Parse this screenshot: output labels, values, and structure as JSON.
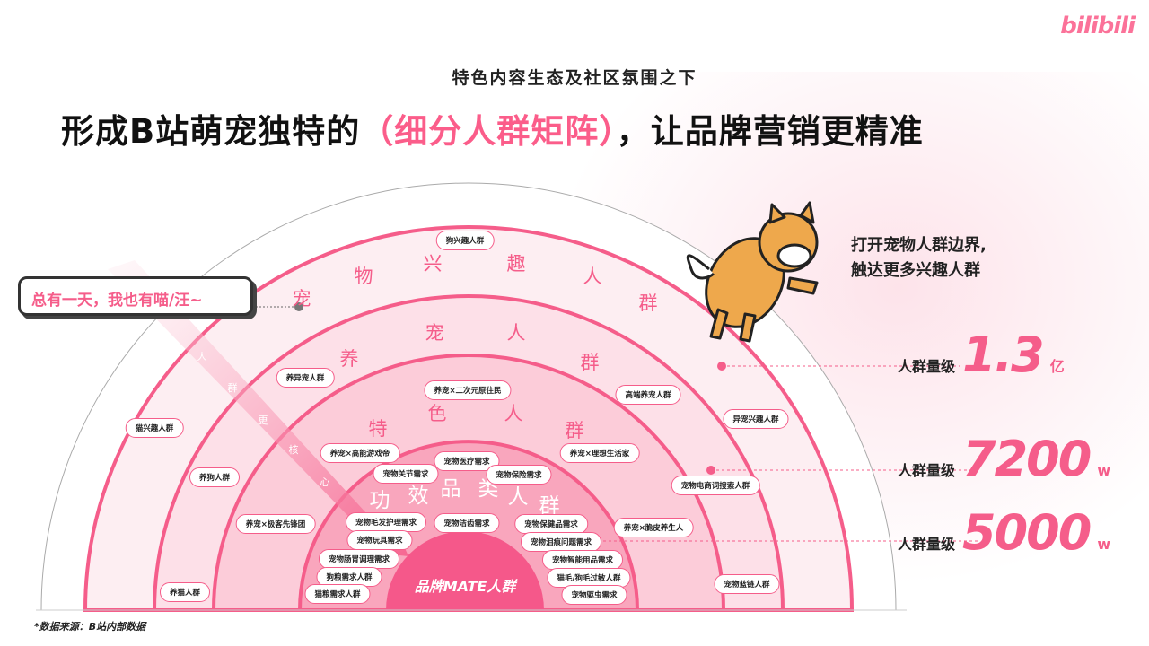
{
  "brand": {
    "logo": "bilibili"
  },
  "header": {
    "subtitle": "特色内容生态及社区氛围之下",
    "title_before": "形成B站萌宠独特的",
    "title_highlight": "（细分人群矩阵）",
    "title_after": "，让品牌营销更精准"
  },
  "colors": {
    "accent": "#f55d8a",
    "core": "#f5588a",
    "ring_light": "#fde9ee"
  },
  "rings": {
    "outer": [
      "宠",
      "物",
      "兴",
      "趣",
      "人",
      "群"
    ],
    "second": [
      "养",
      "宠",
      "人",
      "群"
    ],
    "third": [
      "特",
      "色",
      "人",
      "群"
    ],
    "fourth": [
      "功",
      "效",
      "品",
      "类",
      "人",
      "群"
    ],
    "core": "品牌MATE人群"
  },
  "arrow_text": [
    "人",
    "群",
    "更",
    "核",
    "心"
  ],
  "bubble": "总有一天，我也有喵/汪~",
  "dog_caption": [
    "打开宠物人群边界,",
    "触达更多兴趣人群"
  ],
  "stats": [
    {
      "label": "人群量级",
      "value": "1.3",
      "unit": "亿"
    },
    {
      "label": "人群量级",
      "value": "7200",
      "unit": "w"
    },
    {
      "label": "人群量级",
      "value": "5000",
      "unit": "w"
    }
  ],
  "pills": [
    "狗兴趣人群",
    "养异宠人群",
    "高端养宠人群",
    "异宠兴趣人群",
    "猫兴趣人群",
    "养狗人群",
    "养宠×极客先锋团",
    "养猫人群",
    "宠物电商词搜索人群",
    "养宠×脆皮养生人",
    "宠物蓝链人群",
    "养宠×二次元原住民",
    "养宠×高能游戏帝",
    "养宠×理想生活家",
    "宠物医疗需求",
    "宠物关节需求",
    "宠物保险需求",
    "宠物毛发护理需求",
    "宠物洁齿需求",
    "宠物保健品需求",
    "宠物玩具需求",
    "宠物泪痕问题需求",
    "宠物肠胃调理需求",
    "宠物智能用品需求",
    "狗粮需求人群",
    "猫毛/狗毛过敏人群",
    "猫粮需求人群",
    "宠物驱虫需求"
  ],
  "source": "*数据来源：B站内部数据"
}
